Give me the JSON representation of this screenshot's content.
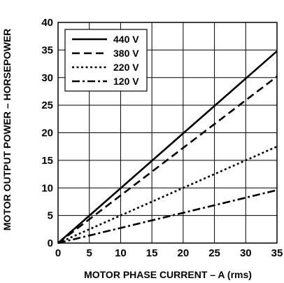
{
  "chart_data": {
    "type": "line",
    "title": "",
    "xlabel": "MOTOR PHASE CURRENT – A (rms)",
    "ylabel": "MOTOR OUTPUT POWER – HORSEPOWER",
    "xlim": [
      0,
      35
    ],
    "ylim": [
      0,
      40
    ],
    "xticks": [
      "0",
      "5",
      "10",
      "15",
      "20",
      "25",
      "30",
      "35"
    ],
    "yticks": [
      "0",
      "5",
      "10",
      "15",
      "20",
      "25",
      "30",
      "35",
      "40"
    ],
    "grid": true,
    "legend_position": "top-left",
    "series": [
      {
        "name": "440 V",
        "dash": "solid",
        "x": [
          0,
          35
        ],
        "y": [
          0,
          34.8
        ]
      },
      {
        "name": "380 V",
        "dash": "dashed",
        "x": [
          0,
          35
        ],
        "y": [
          0,
          30.2
        ]
      },
      {
        "name": "220 V",
        "dash": "dotted",
        "x": [
          0,
          35
        ],
        "y": [
          0,
          17.5
        ]
      },
      {
        "name": "120 V",
        "dash": "dashdot",
        "x": [
          0,
          35
        ],
        "y": [
          0,
          9.6
        ]
      }
    ]
  }
}
